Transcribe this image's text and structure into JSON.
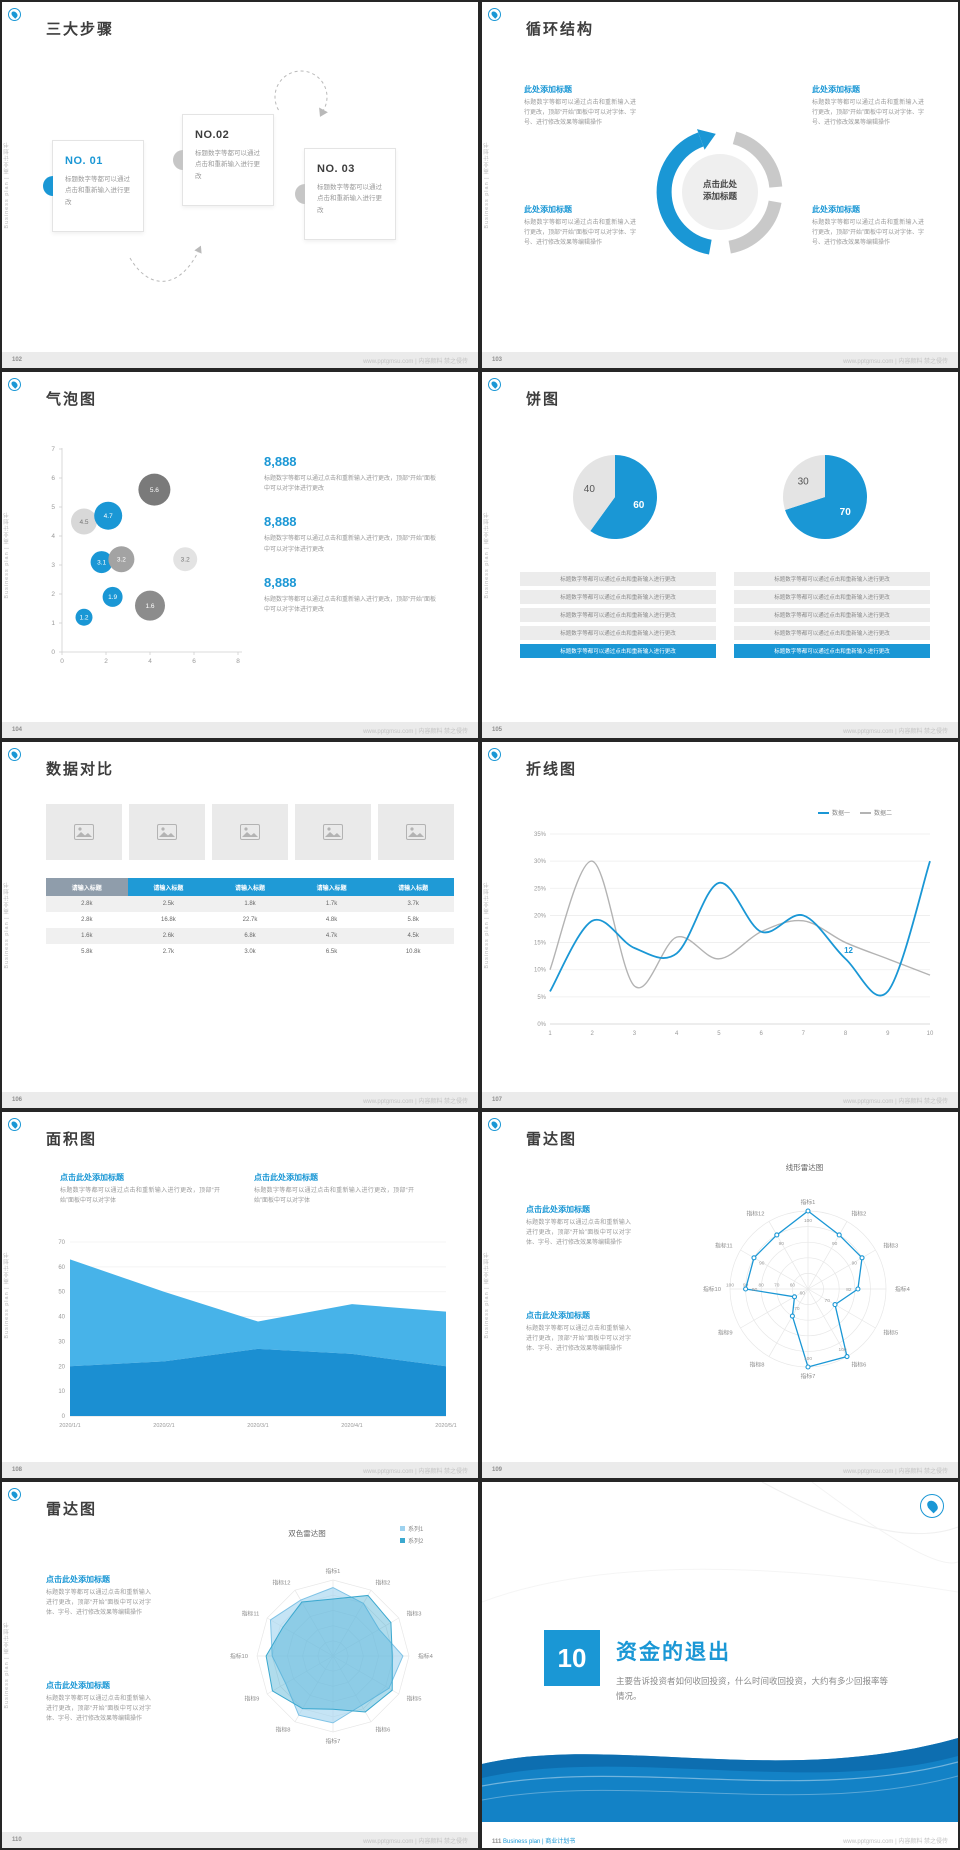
{
  "accent": "#1a97d5",
  "common": {
    "sidebar_text": "Business plan | 商业计划书",
    "watermark": "www.pptgmsu.com | 内容颜料 禁之侵传"
  },
  "s102": {
    "page": "102",
    "title": "三大步骤",
    "steps": [
      {
        "no": "NO. 01",
        "text": "标题数字等都可以通过点击和重新输入进行更改"
      },
      {
        "no": "NO.02",
        "text": "标题数字等都可以通过点击和重新输入进行更改"
      },
      {
        "no": "NO. 03",
        "text": "标题数字等都可以通过点击和重新输入进行更改"
      }
    ]
  },
  "s103": {
    "page": "103",
    "title": "循环结构",
    "center_label": "点击此处添加标题",
    "items": [
      {
        "title": "此处添加标题",
        "text": "标题数字等都可以通过点击和重新输入进行更改，顶部“开始”面板中可以对字体、字号、进行修改效果等编辑操作"
      },
      {
        "title": "此处添加标题",
        "text": "标题数字等都可以通过点击和重新输入进行更改，顶部“开始”面板中可以对字体、字号、进行修改效果等编辑操作"
      },
      {
        "title": "此处添加标题",
        "text": "标题数字等都可以通过点击和重新输入进行更改，顶部“开始”面板中可以对字体、字号、进行修改效果等编辑操作"
      },
      {
        "title": "此处添加标题",
        "text": "标题数字等都可以通过点击和重新输入进行更改，顶部“开始”面板中可以对字体、字号、进行修改效果等编辑操作"
      }
    ]
  },
  "s104": {
    "page": "104",
    "title": "气泡图",
    "chart": {
      "type": "bubble",
      "x_ticks": [
        0,
        2,
        4,
        6,
        8
      ],
      "y_ticks": [
        0,
        1,
        2,
        3,
        4,
        5,
        6,
        7
      ],
      "bubbles": [
        {
          "x": 1,
          "y": 4.5,
          "r": 13,
          "label": "4.5",
          "color": "#d8d8d8",
          "text_color": "#777"
        },
        {
          "x": 2.1,
          "y": 4.7,
          "r": 14,
          "label": "4.7",
          "color": "#1a97d5",
          "text_color": "#fff"
        },
        {
          "x": 4.2,
          "y": 5.6,
          "r": 16,
          "label": "5.6",
          "color": "#7a7a7a",
          "text_color": "#fff"
        },
        {
          "x": 1.8,
          "y": 3.1,
          "r": 11,
          "label": "3.1",
          "color": "#1a97d5",
          "text_color": "#fff"
        },
        {
          "x": 2.7,
          "y": 3.2,
          "r": 13,
          "label": "3.2",
          "color": "#a3a3a3",
          "text_color": "#fff"
        },
        {
          "x": 5.6,
          "y": 3.2,
          "r": 12,
          "label": "3.2",
          "color": "#e3e3e3",
          "text_color": "#777"
        },
        {
          "x": 2.3,
          "y": 1.9,
          "r": 10,
          "label": "1.9",
          "color": "#1a97d5",
          "text_color": "#fff"
        },
        {
          "x": 1,
          "y": 1.2,
          "r": 8.5,
          "label": "1.2",
          "color": "#1a97d5",
          "text_color": "#fff"
        },
        {
          "x": 4,
          "y": 1.6,
          "r": 15,
          "label": "1.6",
          "color": "#8c8c8c",
          "text_color": "#fff"
        }
      ]
    },
    "stats": [
      {
        "value": "8,888",
        "text": "标题数字等都可以通过点击和重新输入进行更改，顶部“开始”面板中可以对字体进行更改"
      },
      {
        "value": "8,888",
        "text": "标题数字等都可以通过点击和重新输入进行更改，顶部“开始”面板中可以对字体进行更改"
      },
      {
        "value": "8,888",
        "text": "标题数字等都可以通过点击和重新输入进行更改，顶部“开始”面板中可以对字体进行更改"
      }
    ]
  },
  "s105": {
    "page": "105",
    "title": "饼图",
    "pies": [
      {
        "blue": 60,
        "gray": 40
      },
      {
        "blue": 70,
        "gray": 30
      }
    ],
    "row_text": "标题数字等都可以通过点击和重新输入进行更改",
    "rows_per_pie": 5
  },
  "s106": {
    "page": "106",
    "title": "数据对比",
    "table": {
      "headers": [
        "请输入标题",
        "请输入标题",
        "请输入标题",
        "请输入标题",
        "请输入标题"
      ],
      "rows": [
        [
          "2.8k",
          "2.5k",
          "1.8k",
          "1.7k",
          "3.7k"
        ],
        [
          "2.8k",
          "16.8k",
          "22.7k",
          "4.8k",
          "5.8k"
        ],
        [
          "1.6k",
          "2.6k",
          "6.8k",
          "4.7k",
          "4.5k"
        ],
        [
          "5.8k",
          "2.7k",
          "3.0k",
          "6.5k",
          "10.8k"
        ]
      ]
    }
  },
  "s107": {
    "page": "107",
    "title": "折线图",
    "chart": {
      "type": "line",
      "legend": [
        {
          "label": "数据一",
          "color": "#1a97d5"
        },
        {
          "label": "数据二",
          "color": "#b3b3b3"
        }
      ],
      "x_labels": [
        "1",
        "2",
        "3",
        "4",
        "5",
        "6",
        "7",
        "8",
        "9",
        "10"
      ],
      "y_ticks": [
        "0%",
        "5%",
        "10%",
        "15%",
        "20%",
        "25%",
        "30%",
        "35%"
      ],
      "y_max": 35,
      "series": [
        {
          "name": "数据一",
          "color": "#1a97d5",
          "values": [
            6,
            19,
            14,
            13,
            26,
            17,
            20,
            12,
            6,
            30
          ]
        },
        {
          "name": "数据二",
          "color": "#b3b3b3",
          "values": [
            10,
            30,
            7,
            16,
            12,
            17,
            19,
            15,
            12,
            9
          ]
        }
      ],
      "annotation": {
        "index": 7,
        "label": "12"
      }
    }
  },
  "s108": {
    "page": "108",
    "title": "面积图",
    "blocks": [
      {
        "title": "点击此处添加标题",
        "text": "标题数字等都可以通过点击和重新输入进行更改，顶部“开始”面板中可以对字体"
      },
      {
        "title": "点击此处添加标题",
        "text": "标题数字等都可以通过点击和重新输入进行更改，顶部“开始”面板中可以对字体"
      }
    ],
    "chart": {
      "type": "area",
      "x_labels": [
        "2020/1/1",
        "2020/2/1",
        "2020/3/1",
        "2020/4/1",
        "2020/5/1"
      ],
      "y_ticks": [
        0,
        10,
        20,
        30,
        40,
        50,
        60,
        70
      ],
      "y_max": 70,
      "series": [
        {
          "name": "数据一",
          "color": "#47b3e9",
          "values": [
            63,
            50,
            38,
            45,
            42
          ]
        },
        {
          "name": "数据二",
          "color": "#1b8fd2",
          "values": [
            20,
            22,
            27,
            25,
            20
          ]
        }
      ]
    }
  },
  "s109": {
    "page": "109",
    "title": "雷达图",
    "chart_title": "线形雷达图",
    "blocks": [
      {
        "title": "点击此处添加标题",
        "text": "标题数字等都可以通过点击和重新输入进行更改，顶部“开始”面板中可以对字体、字号、进行修改效果等编辑操作"
      },
      {
        "title": "点击此处添加标题",
        "text": "标题数字等都可以通过点击和重新输入进行更改，顶部“开始”面板中可以对字体、字号、进行修改效果等编辑操作"
      }
    ],
    "chart": {
      "type": "radar-line",
      "color": "#1a97d5",
      "axes": [
        "指标1",
        "指标2",
        "指标3",
        "指标4",
        "指标5",
        "指标6",
        "指标7",
        "指标8",
        "指标9",
        "指标10",
        "指标11",
        "指标12"
      ],
      "values": [
        100,
        90,
        90,
        82,
        70,
        100,
        100,
        70,
        60,
        90,
        90,
        90
      ],
      "rings": [
        60,
        70,
        80,
        90,
        100
      ],
      "min": 50,
      "max": 100
    }
  },
  "s110": {
    "page": "110",
    "title": "雷达图",
    "chart_title": "双色雷达图",
    "legend": [
      {
        "label": "系列1",
        "color": "#9ed2ef"
      },
      {
        "label": "系列2",
        "color": "#3aa8cf"
      }
    ],
    "blocks": [
      {
        "title": "点击此处添加标题",
        "text": "标题数字等都可以通过点击和重新输入进行更改，顶部“开始”面板中可以对字体、字号、进行修改效果等编辑操作"
      },
      {
        "title": "点击此处添加标题",
        "text": "标题数字等都可以通过点击和重新输入进行更改，顶部“开始”面板中可以对字体、字号、进行修改效果等编辑操作"
      }
    ],
    "chart": {
      "type": "radar-fill",
      "axes": [
        "指标1",
        "指标2",
        "指标3",
        "指标4",
        "指标5",
        "指标6",
        "指标7",
        "指标8",
        "指标9",
        "指标10",
        "指标11",
        "指标12"
      ],
      "series": [
        {
          "name": "系列1",
          "fill": "rgba(158,210,239,0.6)",
          "stroke": "#7fc3e6",
          "values": [
            90,
            80,
            70,
            92,
            85,
            75,
            88,
            90,
            72,
            80,
            95,
            85
          ]
        },
        {
          "name": "系列2",
          "fill": "rgba(58,168,207,0.4)",
          "stroke": "#3aa8cf",
          "values": [
            75,
            92,
            88,
            78,
            90,
            85,
            70,
            80,
            92,
            88,
            76,
            82
          ]
        }
      ]
    }
  },
  "s111": {
    "page": "111",
    "number": "10",
    "title": "资金的退出",
    "text": "主要告诉投资者如何收回投资，什么时间收回投资，大约有多少回报率等情况。",
    "footer_text": "Business plan | 商业计划书"
  }
}
